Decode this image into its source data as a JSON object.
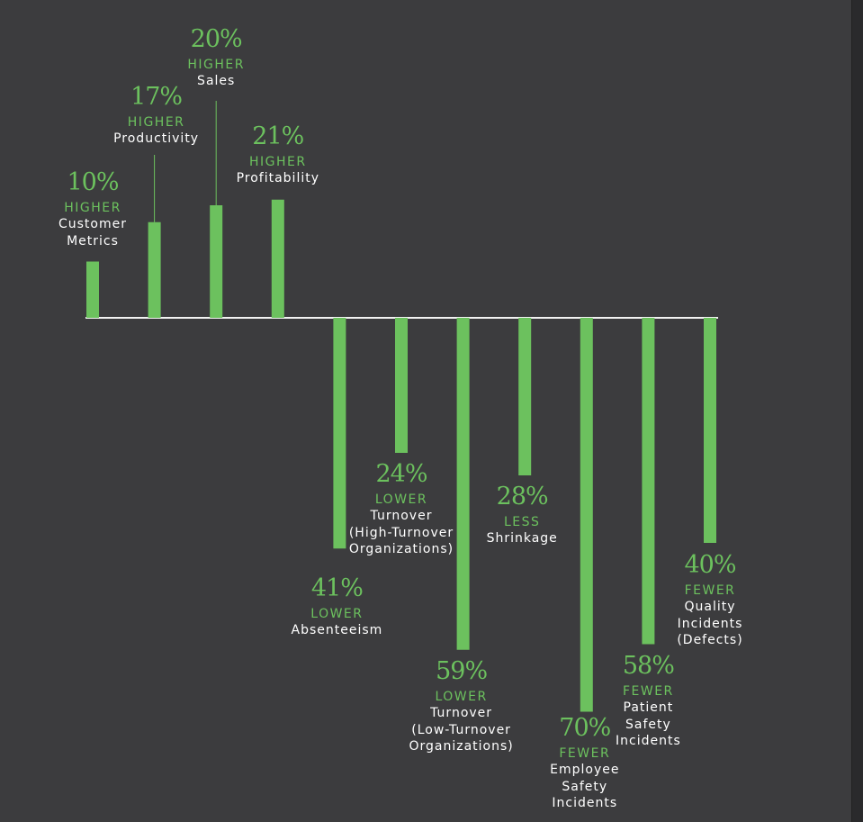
{
  "colors": {
    "background": "#3c3c3e",
    "bar": "#6cc15e",
    "baseline": "#f2f2f2",
    "value_text": "#6cc15e",
    "category_text": "#ffffff"
  },
  "chart_data": {
    "type": "bar",
    "orientation": "vertical",
    "categories": [
      "Customer Metrics",
      "Productivity",
      "Sales",
      "Profitability",
      "Absenteeism",
      "Turnover (High-Turnover Organizations)",
      "Turnover (Low-Turnover Organizations)",
      "Shrinkage",
      "Employee Safety Incidents",
      "Patient Safety Incidents",
      "Quality Incidents (Defects)"
    ],
    "values": [
      10,
      17,
      20,
      21,
      -41,
      -24,
      -59,
      -28,
      -70,
      -58,
      -40
    ],
    "labels": [
      {
        "value": "10%",
        "direction": "HIGHER",
        "lines": [
          "Customer",
          "Metrics"
        ]
      },
      {
        "value": "17%",
        "direction": "HIGHER",
        "lines": [
          "Productivity"
        ]
      },
      {
        "value": "20%",
        "direction": "HIGHER",
        "lines": [
          "Sales"
        ]
      },
      {
        "value": "21%",
        "direction": "HIGHER",
        "lines": [
          "Profitability"
        ]
      },
      {
        "value": "41%",
        "direction": "LOWER",
        "lines": [
          "Absenteeism"
        ]
      },
      {
        "value": "24%",
        "direction": "LOWER",
        "lines": [
          "Turnover",
          "(High-Turnover",
          "Organizations)"
        ]
      },
      {
        "value": "59%",
        "direction": "LOWER",
        "lines": [
          "Turnover",
          "(Low-Turnover",
          "Organizations)"
        ]
      },
      {
        "value": "28%",
        "direction": "LESS",
        "lines": [
          "Shrinkage"
        ]
      },
      {
        "value": "70%",
        "direction": "FEWER",
        "lines": [
          "Employee",
          "Safety",
          "Incidents"
        ]
      },
      {
        "value": "58%",
        "direction": "FEWER",
        "lines": [
          "Patient",
          "Safety",
          "Incidents"
        ]
      },
      {
        "value": "40%",
        "direction": "FEWER",
        "lines": [
          "Quality",
          "Incidents",
          "(Defects)"
        ]
      }
    ],
    "title": "",
    "xlabel": "",
    "ylabel": "",
    "grid": false,
    "legend": "none"
  }
}
